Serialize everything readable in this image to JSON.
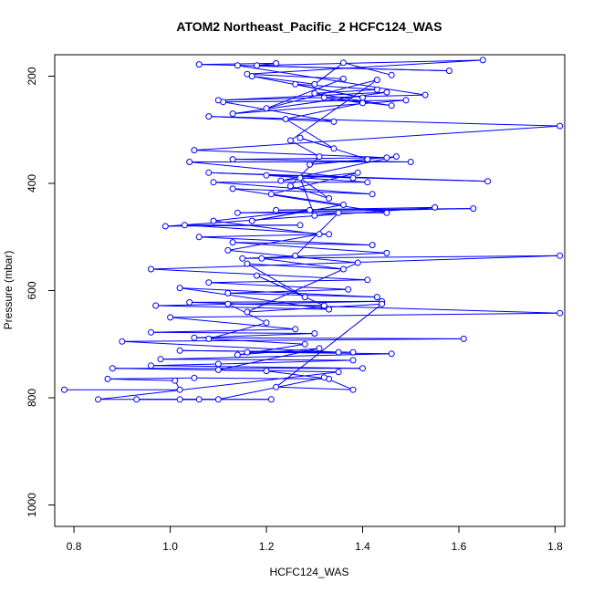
{
  "chart_data": {
    "type": "scatter",
    "title": "ATOM2 Northeast_Pacific_2 HCFC124_WAS",
    "xlabel": "HCFC124_WAS",
    "ylabel": "Pressure (mbar)",
    "xlim": [
      0.76,
      1.82
    ],
    "ylim": [
      1040,
      160
    ],
    "y_reversed": true,
    "grid": false,
    "xticks": [
      0.8,
      1.0,
      1.2,
      1.4,
      1.6,
      1.8
    ],
    "xtick_labels": [
      "0.8",
      "1.0",
      "1.2",
      "1.4",
      "1.6",
      "1.8"
    ],
    "yticks": [
      200,
      400,
      600,
      800,
      1000
    ],
    "ytick_labels": [
      "200",
      "400",
      "600",
      "800",
      "1000"
    ],
    "series_color": "#0000ff",
    "marker": "open-circle",
    "connected": true,
    "series": [
      {
        "points": [
          [
            0.78,
            785
          ],
          [
            1.02,
            785
          ],
          [
            1.01,
            768
          ],
          [
            0.87,
            765
          ],
          [
            1.05,
            763
          ],
          [
            1.33,
            765
          ],
          [
            1.2,
            750
          ],
          [
            0.88,
            745
          ],
          [
            1.4,
            745
          ],
          [
            0.96,
            740
          ],
          [
            1.1,
            737
          ],
          [
            1.38,
            730
          ],
          [
            0.98,
            728
          ],
          [
            1.46,
            718
          ],
          [
            1.16,
            715
          ],
          [
            1.38,
            715
          ],
          [
            1.02,
            712
          ],
          [
            1.35,
            715
          ],
          [
            0.9,
            695
          ],
          [
            1.61,
            690
          ],
          [
            1.05,
            688
          ],
          [
            1.3,
            680
          ],
          [
            0.96,
            678
          ],
          [
            1.26,
            672
          ],
          [
            1.0,
            650
          ],
          [
            1.81,
            642
          ],
          [
            1.04,
            622
          ],
          [
            1.44,
            620
          ],
          [
            0.97,
            628
          ],
          [
            1.33,
            635
          ],
          [
            1.02,
            595
          ],
          [
            1.43,
            612
          ],
          [
            1.12,
            605
          ],
          [
            1.37,
            598
          ],
          [
            1.08,
            585
          ],
          [
            1.41,
            580
          ],
          [
            0.96,
            560
          ],
          [
            1.81,
            535
          ],
          [
            1.15,
            540
          ],
          [
            1.45,
            530
          ],
          [
            1.13,
            510
          ],
          [
            1.42,
            515
          ],
          [
            1.06,
            500
          ],
          [
            1.33,
            495
          ],
          [
            1.03,
            478
          ],
          [
            1.27,
            478
          ],
          [
            0.99,
            480
          ],
          [
            1.55,
            445
          ],
          [
            1.22,
            450
          ],
          [
            1.63,
            447
          ],
          [
            1.14,
            455
          ],
          [
            1.45,
            455
          ],
          [
            1.13,
            410
          ],
          [
            1.42,
            420
          ],
          [
            1.09,
            398
          ],
          [
            1.41,
            398
          ],
          [
            1.2,
            385
          ],
          [
            1.66,
            396
          ],
          [
            1.08,
            380
          ],
          [
            1.38,
            390
          ],
          [
            1.04,
            360
          ],
          [
            1.5,
            360
          ],
          [
            1.13,
            355
          ],
          [
            1.45,
            352
          ],
          [
            1.05,
            338
          ],
          [
            1.81,
            293
          ],
          [
            1.08,
            275
          ],
          [
            1.34,
            285
          ],
          [
            1.11,
            248
          ],
          [
            1.49,
            245
          ],
          [
            1.13,
            270
          ],
          [
            1.45,
            230
          ],
          [
            1.1,
            245
          ],
          [
            1.53,
            235
          ],
          [
            1.14,
            180
          ],
          [
            1.58,
            190
          ],
          [
            1.06,
            178
          ],
          [
            1.22,
            176
          ],
          [
            1.18,
            180
          ],
          [
            1.65,
            170
          ],
          [
            1.16,
            196
          ],
          [
            1.36,
            205
          ],
          [
            1.2,
            260
          ],
          [
            1.43,
            207
          ],
          [
            1.25,
            320
          ],
          [
            1.31,
            350
          ],
          [
            1.25,
            405
          ],
          [
            1.33,
            428
          ],
          [
            1.27,
            390
          ],
          [
            1.3,
            460
          ],
          [
            1.35,
            455
          ],
          [
            1.26,
            535
          ],
          [
            1.19,
            540
          ],
          [
            1.36,
            560
          ],
          [
            1.16,
            550
          ],
          [
            1.28,
            612
          ],
          [
            1.18,
            572
          ],
          [
            1.32,
            628
          ],
          [
            1.12,
            625
          ],
          [
            1.2,
            660
          ],
          [
            1.08,
            690
          ],
          [
            1.28,
            700
          ],
          [
            1.14,
            720
          ],
          [
            1.31,
            708
          ],
          [
            1.1,
            748
          ],
          [
            1.35,
            752
          ],
          [
            0.85,
            803
          ],
          [
            1.21,
            803
          ],
          [
            0.93,
            803
          ],
          [
            1.06,
            803
          ],
          [
            1.02,
            803
          ],
          [
            1.1,
            803
          ],
          [
            1.32,
            762
          ],
          [
            1.38,
            785
          ],
          [
            1.22,
            780
          ],
          [
            1.44,
            625
          ],
          [
            1.16,
            640
          ],
          [
            1.39,
            548
          ],
          [
            1.12,
            525
          ],
          [
            1.31,
            495
          ],
          [
            1.09,
            470
          ],
          [
            1.29,
            450
          ],
          [
            1.17,
            470
          ],
          [
            1.36,
            440
          ],
          [
            1.21,
            420
          ],
          [
            1.39,
            380
          ],
          [
            1.23,
            395
          ],
          [
            1.47,
            350
          ],
          [
            1.29,
            365
          ],
          [
            1.41,
            355
          ],
          [
            1.27,
            315
          ],
          [
            1.34,
            335
          ],
          [
            1.24,
            280
          ],
          [
            1.4,
            250
          ],
          [
            1.32,
            240
          ],
          [
            1.46,
            255
          ],
          [
            1.3,
            232
          ],
          [
            1.43,
            225
          ],
          [
            1.26,
            215
          ],
          [
            1.4,
            240
          ],
          [
            1.17,
            200
          ],
          [
            1.3,
            215
          ],
          [
            1.36,
            175
          ],
          [
            1.46,
            198
          ]
        ]
      }
    ]
  }
}
